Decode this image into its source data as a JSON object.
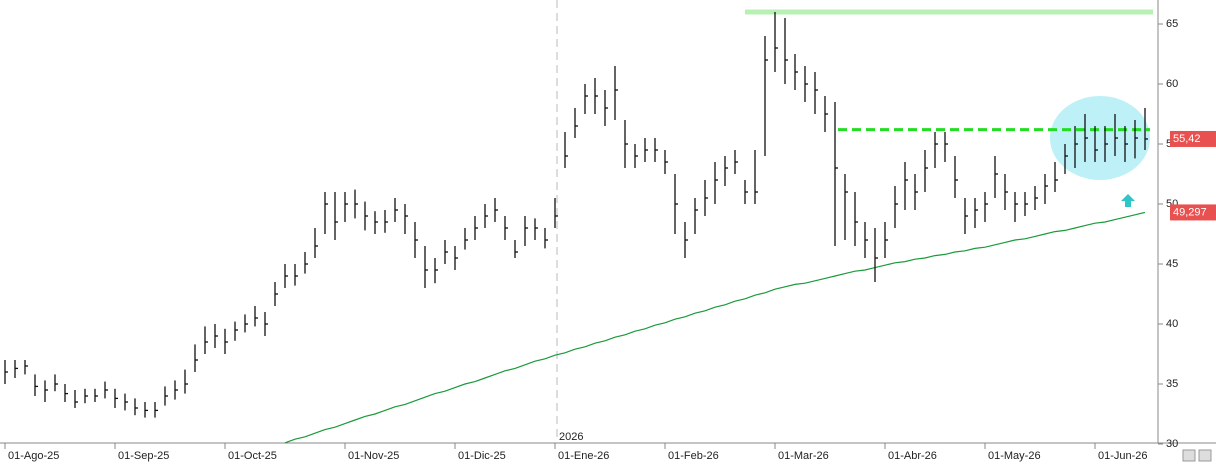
{
  "chart_data": {
    "type": "hlc",
    "categories": [
      "01-Ago-25",
      null,
      null,
      null,
      null,
      null,
      null,
      null,
      null,
      null,
      null,
      "01-Sep-25",
      null,
      null,
      null,
      null,
      null,
      null,
      null,
      null,
      null,
      null,
      "01-Oct-25",
      null,
      null,
      null,
      null,
      null,
      null,
      null,
      null,
      null,
      null,
      null,
      "01-Nov-25",
      null,
      null,
      null,
      null,
      null,
      null,
      null,
      null,
      null,
      null,
      "01-Dic-25",
      null,
      null,
      null,
      null,
      null,
      null,
      null,
      null,
      null,
      "01-Ene-26",
      null,
      null,
      null,
      null,
      null,
      null,
      null,
      null,
      null,
      null,
      "01-Feb-26",
      null,
      null,
      null,
      null,
      null,
      null,
      null,
      null,
      null,
      null,
      "01-Mar-26",
      null,
      null,
      null,
      null,
      null,
      null,
      null,
      null,
      null,
      null,
      "01-Abr-26",
      null,
      null,
      null,
      null,
      null,
      null,
      null,
      null,
      null,
      "01-May-26",
      null,
      null,
      null,
      null,
      null,
      null,
      null,
      null,
      null,
      null,
      "01-Jun-26",
      null,
      null,
      null,
      null,
      null
    ],
    "close": [
      36,
      36.3,
      36.5,
      34.8,
      34.5,
      35,
      34.2,
      33.5,
      34,
      34,
      34.5,
      33.8,
      33.5,
      33,
      32.8,
      32.8,
      34,
      34.5,
      35,
      37,
      38.5,
      39,
      38.5,
      39.5,
      40,
      40.5,
      40,
      42.5,
      44,
      44,
      45,
      46.5,
      50,
      48.5,
      50,
      50,
      49,
      48.5,
      48.5,
      49.5,
      49,
      47,
      44.5,
      44.5,
      46,
      45.5,
      47,
      48,
      49,
      49.5,
      48,
      46,
      48,
      48,
      47,
      49,
      54,
      56.5,
      59,
      59,
      58,
      59.5,
      55,
      54,
      54.5,
      54.5,
      53.5,
      50,
      47,
      49.5,
      50.5,
      52,
      53,
      53.5,
      51,
      51,
      62,
      63,
      62,
      61,
      60,
      59.5,
      57.5,
      53,
      51,
      48.5,
      47,
      45.5,
      47,
      50,
      52,
      51,
      53,
      55,
      55,
      52,
      49,
      49.5,
      50,
      52.5,
      51,
      50,
      50,
      50.5,
      51.5,
      52,
      54,
      55,
      55.5,
      54.5,
      55,
      55.5,
      55,
      55.5,
      55.42
    ],
    "high": [
      37,
      37,
      37,
      35.8,
      35.3,
      35.8,
      35,
      34.5,
      34.6,
      34.6,
      35.2,
      34.6,
      34.2,
      33.8,
      33.5,
      33.5,
      34.8,
      35.3,
      36.2,
      38.3,
      39.8,
      40,
      39.6,
      40.2,
      40.8,
      41.5,
      41,
      43.5,
      45,
      45,
      46,
      48,
      51,
      51,
      51,
      51.2,
      50.2,
      49.4,
      49.5,
      50.5,
      50,
      48.5,
      46.5,
      45.5,
      47,
      46.5,
      48,
      49,
      50,
      50.5,
      49,
      47,
      49,
      48.8,
      48,
      50.5,
      56,
      58,
      60,
      60.5,
      59.5,
      61.5,
      57,
      55,
      55.5,
      55.5,
      54.5,
      52.5,
      48.5,
      50.5,
      52,
      53.5,
      54,
      54.5,
      52,
      54.5,
      64,
      66,
      65.5,
      62.5,
      61.5,
      61,
      59,
      58.5,
      52.5,
      51,
      48.5,
      48,
      48.5,
      51.5,
      53.5,
      52.5,
      54.5,
      56,
      56,
      54,
      50.5,
      50.5,
      51,
      54,
      52.5,
      51,
      51,
      51.5,
      52.5,
      53.5,
      55,
      56.5,
      57.5,
      56.5,
      56.5,
      57.5,
      56.5,
      57,
      58
    ],
    "low": [
      35,
      35.5,
      35.8,
      34,
      33.5,
      34.4,
      33.5,
      33,
      33.4,
      33.5,
      33.8,
      33,
      32.8,
      32.4,
      32.2,
      32.2,
      33.2,
      33.7,
      34.2,
      36,
      37.5,
      38,
      37.5,
      38.6,
      39.3,
      39.8,
      39,
      41.5,
      43,
      43.2,
      44.2,
      45.5,
      47.5,
      47,
      48.5,
      48.8,
      47.8,
      47.5,
      47.6,
      48.5,
      47.5,
      45.5,
      43,
      43.4,
      45,
      44.5,
      46.2,
      47,
      48,
      48.5,
      47,
      45.5,
      46.5,
      47,
      46.3,
      48,
      53,
      55.5,
      57.5,
      57.5,
      56.5,
      57,
      53,
      53,
      53.5,
      53.5,
      52.5,
      47.5,
      45.5,
      47.5,
      49,
      50,
      51.5,
      52.5,
      50,
      50,
      54,
      61,
      60,
      59.5,
      58.5,
      57.5,
      56,
      46.5,
      47,
      46.5,
      45.5,
      43.5,
      45.5,
      48,
      49.5,
      49.5,
      51,
      53,
      53.5,
      50.5,
      47.5,
      48,
      48.5,
      50.5,
      49.5,
      48.5,
      49,
      49.5,
      50,
      51,
      52.5,
      53,
      53.5,
      53.5,
      53.5,
      54,
      53.5,
      53.8,
      54.5
    ],
    "bar_color": "#111111",
    "moving_average": {
      "color": "#1a9a3a",
      "values": [
        null,
        null,
        null,
        null,
        null,
        null,
        null,
        null,
        null,
        null,
        null,
        null,
        null,
        null,
        null,
        null,
        null,
        null,
        null,
        null,
        null,
        null,
        null,
        null,
        null,
        null,
        null,
        null,
        30.1,
        30.4,
        30.6,
        30.9,
        31.2,
        31.4,
        31.7,
        32.0,
        32.3,
        32.5,
        32.8,
        33.1,
        33.3,
        33.6,
        33.9,
        34.2,
        34.4,
        34.7,
        35.0,
        35.2,
        35.5,
        35.8,
        36.1,
        36.3,
        36.6,
        36.9,
        37.1,
        37.4,
        37.6,
        37.9,
        38.1,
        38.4,
        38.6,
        38.9,
        39.1,
        39.4,
        39.6,
        39.9,
        40.1,
        40.4,
        40.6,
        40.9,
        41.1,
        41.4,
        41.6,
        41.9,
        42.1,
        42.4,
        42.6,
        42.9,
        43.1,
        43.3,
        43.4,
        43.6,
        43.8,
        44.0,
        44.2,
        44.4,
        44.5,
        44.7,
        44.9,
        45.1,
        45.2,
        45.4,
        45.5,
        45.7,
        45.8,
        46.0,
        46.1,
        46.3,
        46.4,
        46.6,
        46.8,
        47.0,
        47.1,
        47.3,
        47.5,
        47.7,
        47.8,
        48.0,
        48.2,
        48.4,
        48.5,
        48.7,
        48.9,
        49.1,
        49.297
      ]
    },
    "ylim": [
      30,
      67
    ],
    "yticks": [
      30,
      35,
      40,
      45,
      50,
      55,
      60,
      65
    ],
    "hlines": [
      {
        "value": 66,
        "color": "#b8f0b4",
        "style": "solid"
      },
      {
        "value": 56.2,
        "color": "#22dd22",
        "style": "dashed"
      }
    ],
    "markers": [
      {
        "value": 55.42,
        "label": "55,42",
        "color": "#e8514f"
      },
      {
        "value": 49.297,
        "label": "49,297",
        "color": "#e8514f"
      }
    ],
    "year_label": "2026"
  }
}
